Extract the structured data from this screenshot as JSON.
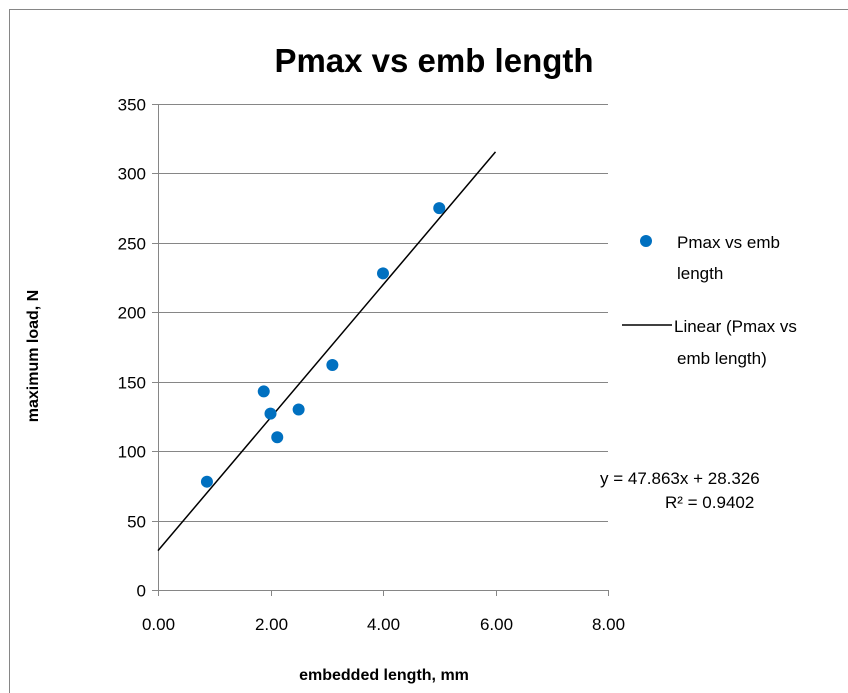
{
  "chart_data": {
    "type": "scatter",
    "title": "Pmax vs emb length",
    "xlabel": "embedded length, mm",
    "ylabel": "maximum load, N",
    "xlim": [
      0,
      8
    ],
    "ylim": [
      0,
      350
    ],
    "x_ticks": [
      "0.00",
      "2.00",
      "4.00",
      "6.00",
      "8.00"
    ],
    "y_ticks": [
      "0",
      "50",
      "100",
      "150",
      "200",
      "250",
      "300",
      "350"
    ],
    "grid": "horizontal",
    "legend_position": "right",
    "series": [
      {
        "name": "Pmax vs emb length",
        "color": "#0070C0",
        "points": [
          {
            "x": 0.87,
            "y": 78
          },
          {
            "x": 1.88,
            "y": 143
          },
          {
            "x": 2.0,
            "y": 127
          },
          {
            "x": 2.12,
            "y": 110
          },
          {
            "x": 2.5,
            "y": 130
          },
          {
            "x": 3.1,
            "y": 162
          },
          {
            "x": 4.0,
            "y": 228
          },
          {
            "x": 5.0,
            "y": 275
          }
        ]
      }
    ],
    "trendline": {
      "name": "Linear (Pmax vs emb length)",
      "color": "#000000",
      "slope": 47.863,
      "intercept": 28.326,
      "x_range": [
        0,
        6
      ],
      "equation": "y = 47.863x + 28.326",
      "r_squared": "R² = 0.9402"
    },
    "legend": {
      "series_label_lines": [
        "Pmax vs emb",
        "length"
      ],
      "trend_label_lines": [
        "Linear (Pmax vs",
        "emb length)"
      ]
    }
  }
}
